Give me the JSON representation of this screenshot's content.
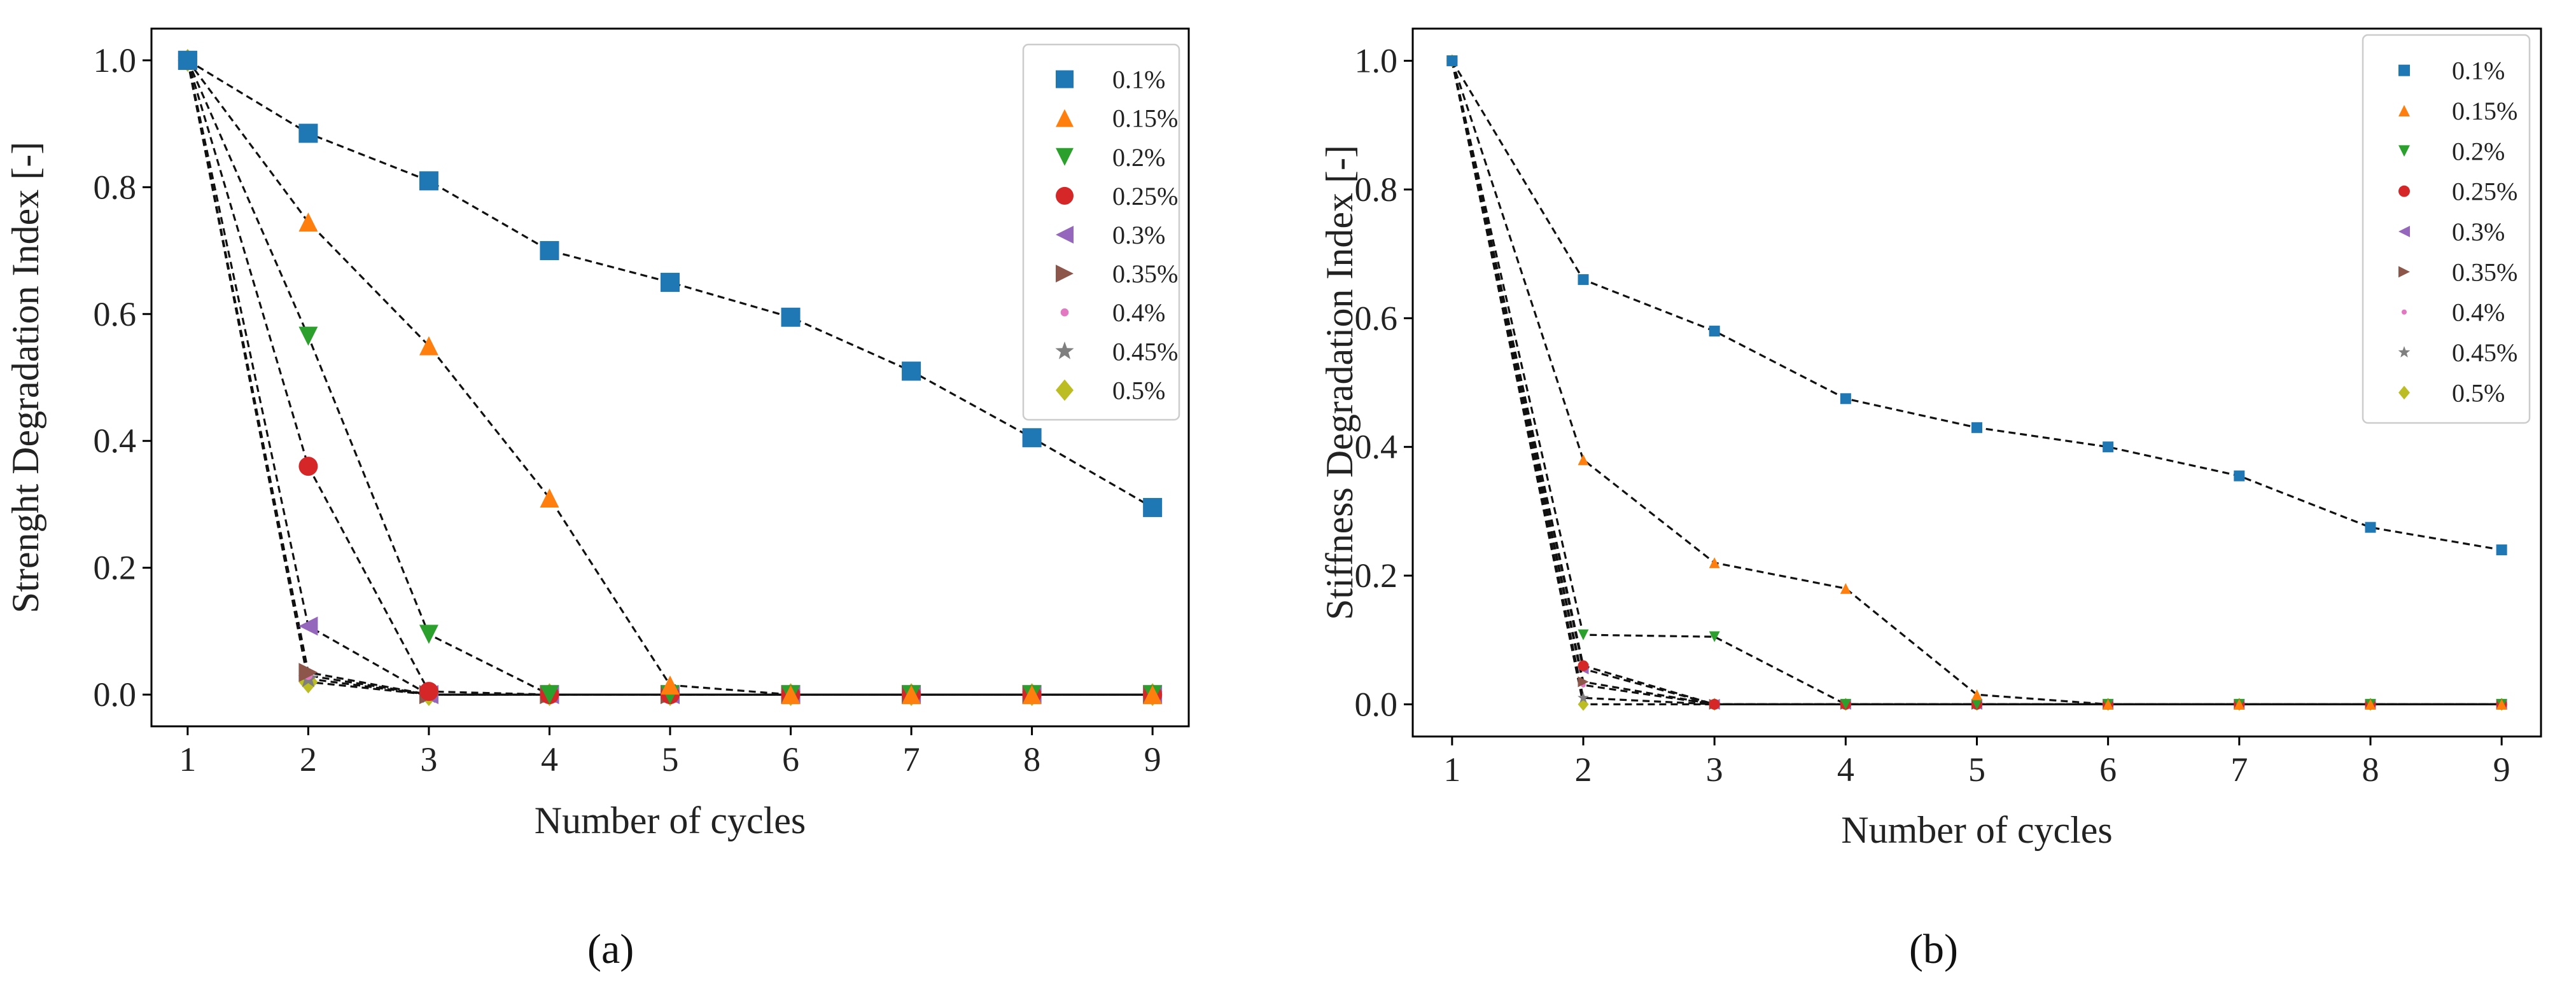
{
  "figure": {
    "panels": [
      "(a)",
      "(b)"
    ]
  },
  "chart_data": [
    {
      "type": "line",
      "title": "",
      "xlabel": "Number of cycles",
      "ylabel": "Strenght Degradation Index [-]",
      "x": [
        1,
        2,
        3,
        4,
        5,
        6,
        7,
        8,
        9
      ],
      "xlim": [
        0.7,
        9.3
      ],
      "ylim": [
        -0.05,
        1.05
      ],
      "yticks": [
        "0.0",
        "0.2",
        "0.4",
        "0.6",
        "0.8",
        "1.0"
      ],
      "xticks": [
        "1",
        "2",
        "3",
        "4",
        "5",
        "6",
        "7",
        "8",
        "9"
      ],
      "legend_position": "top-right",
      "line_style": "dashed-black",
      "marker_size": "large",
      "series": [
        {
          "name": "0.1%",
          "color": "#1f77b4",
          "marker": "square",
          "values": [
            1.0,
            0.885,
            0.81,
            0.7,
            0.65,
            0.595,
            0.51,
            0.405,
            0.295
          ]
        },
        {
          "name": "0.15%",
          "color": "#ff7f0e",
          "marker": "triangle-up",
          "values": [
            1.0,
            0.745,
            0.55,
            0.31,
            0.015,
            0.0,
            0.0,
            0.0,
            0.0
          ]
        },
        {
          "name": "0.2%",
          "color": "#2ca02c",
          "marker": "triangle-down",
          "values": [
            1.0,
            0.565,
            0.095,
            0.0,
            0.0,
            0.0,
            0.0,
            0.0,
            0.0
          ]
        },
        {
          "name": "0.25%",
          "color": "#d62728",
          "marker": "circle",
          "values": [
            1.0,
            0.36,
            0.005,
            0.0,
            0.0,
            0.0,
            0.0,
            0.0,
            0.0
          ]
        },
        {
          "name": "0.3%",
          "color": "#9467bd",
          "marker": "triangle-left",
          "values": [
            1.0,
            0.108,
            0.0,
            0.0,
            0.0,
            0.0,
            0.0,
            0.0,
            0.0
          ]
        },
        {
          "name": "0.35%",
          "color": "#8c564b",
          "marker": "triangle-right",
          "values": [
            1.0,
            0.035,
            0.0,
            0.0,
            0.0,
            0.0,
            0.0,
            0.0,
            0.0
          ]
        },
        {
          "name": "0.4%",
          "color": "#e377c2",
          "marker": "dot",
          "values": [
            1.0,
            0.03,
            0.0,
            0.0,
            0.0,
            0.0,
            0.0,
            0.0,
            0.0
          ]
        },
        {
          "name": "0.45%",
          "color": "#7f7f7f",
          "marker": "star",
          "values": [
            1.0,
            0.025,
            0.0,
            0.0,
            0.0,
            0.0,
            0.0,
            0.0,
            0.0
          ]
        },
        {
          "name": "0.5%",
          "color": "#bcbd22",
          "marker": "diamond",
          "values": [
            1.0,
            0.02,
            0.0,
            0.0,
            0.0,
            0.0,
            0.0,
            0.0,
            0.0
          ]
        }
      ]
    },
    {
      "type": "line",
      "title": "",
      "xlabel": "Number of cycles",
      "ylabel": "Stiffness Degradation Index [-]",
      "x": [
        1,
        2,
        3,
        4,
        5,
        6,
        7,
        8,
        9
      ],
      "xlim": [
        0.7,
        9.3
      ],
      "ylim": [
        -0.05,
        1.05
      ],
      "yticks": [
        "0.0",
        "0.2",
        "0.4",
        "0.6",
        "0.8",
        "1.0"
      ],
      "xticks": [
        "1",
        "2",
        "3",
        "4",
        "5",
        "6",
        "7",
        "8",
        "9"
      ],
      "legend_position": "top-right",
      "line_style": "dashed-black",
      "marker_size": "small",
      "series": [
        {
          "name": "0.1%",
          "color": "#1f77b4",
          "marker": "square",
          "values": [
            1.0,
            0.66,
            0.58,
            0.475,
            0.43,
            0.4,
            0.355,
            0.275,
            0.24
          ]
        },
        {
          "name": "0.15%",
          "color": "#ff7f0e",
          "marker": "triangle-up",
          "values": [
            1.0,
            0.38,
            0.22,
            0.18,
            0.015,
            0.0,
            0.0,
            0.0,
            0.0
          ]
        },
        {
          "name": "0.2%",
          "color": "#2ca02c",
          "marker": "triangle-down",
          "values": [
            1.0,
            0.108,
            0.105,
            0.0,
            0.0,
            0.0,
            0.0,
            0.0,
            0.0
          ]
        },
        {
          "name": "0.25%",
          "color": "#d62728",
          "marker": "circle",
          "values": [
            1.0,
            0.06,
            0.0,
            0.0,
            0.0,
            0.0,
            0.0,
            0.0,
            0.0
          ]
        },
        {
          "name": "0.3%",
          "color": "#9467bd",
          "marker": "triangle-left",
          "values": [
            1.0,
            0.055,
            0.0,
            0.0,
            0.0,
            0.0,
            0.0,
            0.0,
            0.0
          ]
        },
        {
          "name": "0.35%",
          "color": "#8c564b",
          "marker": "triangle-right",
          "values": [
            1.0,
            0.035,
            0.0,
            0.0,
            0.0,
            0.0,
            0.0,
            0.0,
            0.0
          ]
        },
        {
          "name": "0.4%",
          "color": "#e377c2",
          "marker": "dot",
          "values": [
            1.0,
            0.03,
            0.0,
            0.0,
            0.0,
            0.0,
            0.0,
            0.0,
            0.0
          ]
        },
        {
          "name": "0.45%",
          "color": "#7f7f7f",
          "marker": "star",
          "values": [
            1.0,
            0.01,
            0.0,
            0.0,
            0.0,
            0.0,
            0.0,
            0.0,
            0.0
          ]
        },
        {
          "name": "0.5%",
          "color": "#bcbd22",
          "marker": "diamond",
          "values": [
            1.0,
            0.0,
            0.0,
            0.0,
            0.0,
            0.0,
            0.0,
            0.0,
            0.0
          ]
        }
      ]
    }
  ]
}
